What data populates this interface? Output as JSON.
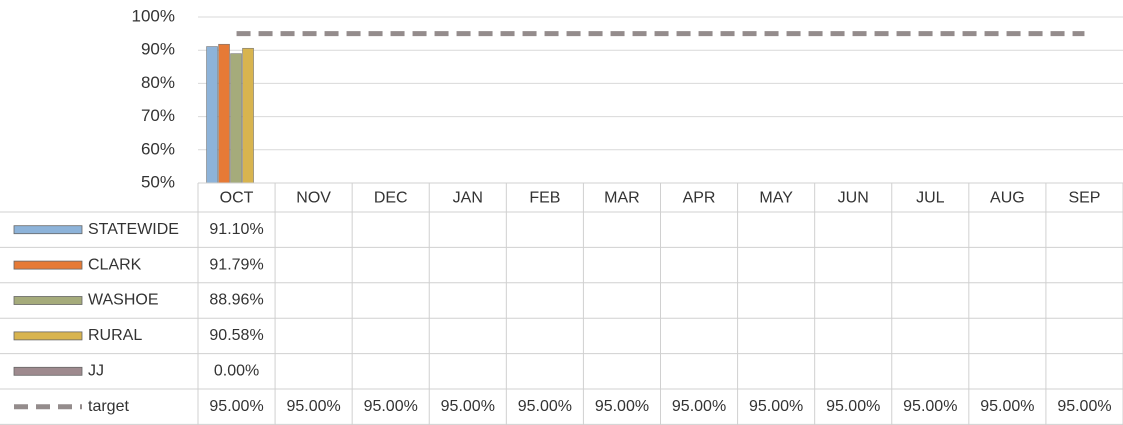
{
  "chart_data": {
    "type": "bar",
    "categories": [
      "OCT",
      "NOV",
      "DEC",
      "JAN",
      "FEB",
      "MAR",
      "APR",
      "MAY",
      "JUN",
      "JUL",
      "AUG",
      "SEP"
    ],
    "series": [
      {
        "name": "STATEWIDE",
        "color": "#8db3d9",
        "values": [
          91.1,
          null,
          null,
          null,
          null,
          null,
          null,
          null,
          null,
          null,
          null,
          null
        ],
        "value_labels": [
          "91.10%",
          null,
          null,
          null,
          null,
          null,
          null,
          null,
          null,
          null,
          null,
          null
        ]
      },
      {
        "name": "CLARK",
        "color": "#e67a36",
        "values": [
          91.79,
          null,
          null,
          null,
          null,
          null,
          null,
          null,
          null,
          null,
          null,
          null
        ],
        "value_labels": [
          "91.79%",
          null,
          null,
          null,
          null,
          null,
          null,
          null,
          null,
          null,
          null,
          null
        ]
      },
      {
        "name": "WASHOE",
        "color": "#a5ab7b",
        "values": [
          88.96,
          null,
          null,
          null,
          null,
          null,
          null,
          null,
          null,
          null,
          null,
          null
        ],
        "value_labels": [
          "88.96%",
          null,
          null,
          null,
          null,
          null,
          null,
          null,
          null,
          null,
          null,
          null
        ]
      },
      {
        "name": "RURAL",
        "color": "#d8b44f",
        "values": [
          90.58,
          null,
          null,
          null,
          null,
          null,
          null,
          null,
          null,
          null,
          null,
          null
        ],
        "value_labels": [
          "90.58%",
          null,
          null,
          null,
          null,
          null,
          null,
          null,
          null,
          null,
          null,
          null
        ]
      },
      {
        "name": "JJ",
        "color": "#9e8a8e",
        "values": [
          0.0,
          null,
          null,
          null,
          null,
          null,
          null,
          null,
          null,
          null,
          null,
          null
        ],
        "value_labels": [
          "0.00%",
          null,
          null,
          null,
          null,
          null,
          null,
          null,
          null,
          null,
          null,
          null
        ]
      },
      {
        "name": "target",
        "type": "line",
        "color": "#948c8c",
        "values": [
          95,
          95,
          95,
          95,
          95,
          95,
          95,
          95,
          95,
          95,
          95,
          95
        ],
        "value_labels": [
          "95.00%",
          "95.00%",
          "95.00%",
          "95.00%",
          "95.00%",
          "95.00%",
          "95.00%",
          "95.00%",
          "95.00%",
          "95.00%",
          "95.00%",
          "95.00%"
        ]
      }
    ],
    "ylim": [
      50,
      100
    ],
    "yticks": [
      {
        "value": 50,
        "label": "50%"
      },
      {
        "value": 60,
        "label": "60%"
      },
      {
        "value": 70,
        "label": "70%"
      },
      {
        "value": 80,
        "label": "80%"
      },
      {
        "value": 90,
        "label": "90%"
      },
      {
        "value": 100,
        "label": "100%"
      }
    ],
    "grid": true
  }
}
